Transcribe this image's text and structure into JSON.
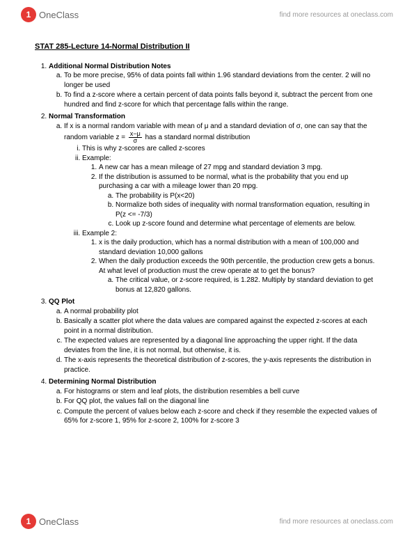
{
  "brand": {
    "logo_letter": "1",
    "logo_name": "OneClass",
    "header_link": "find more resources at oneclass.com",
    "footer_link": "find more resources at oneclass.com"
  },
  "doc": {
    "title": "STAT 285-Lecture 14-Normal Distribution II",
    "s1": {
      "title": "Additional Normal Distribution Notes",
      "a": "To be more precise, 95% of data points fall within 1.96 standard deviations from the center. 2 will no longer be used",
      "b": "To find a z-score where a certain percent of data points falls beyond it, subtract the percent from one hundred and find z-score for which that percentage falls within the range."
    },
    "s2": {
      "title": "Normal Transformation",
      "a_pre": "If x is a normal random variable with mean of μ and a standard deviation of σ, one can say that the random variable z = ",
      "a_num": "x−μ",
      "a_den": "σ",
      "a_post": " has a standard normal distribution",
      "i": "This is why z-scores are called z-scores",
      "ii": "Example:",
      "ii1": "A new car has a mean mileage of 27 mpg and standard deviation 3 mpg.",
      "ii2": "If the distribution is assumed to be normal, what is the probability that you end up purchasing a car with a mileage lower than 20 mpg.",
      "ii2a": "The probability is P(x<20)",
      "ii2b": "Normalize both sides of inequality with normal transformation equation, resulting in P(z <= -7/3)",
      "ii2c": "Look up z-score found and determine what percentage of elements are below.",
      "iii": "Example 2:",
      "iii1": "x is the daily production, which has a normal distribution with a mean of 100,000 and standard deviation 10,000 gallons",
      "iii2": "When the daily production exceeds the 90th percentile, the production crew gets a bonus. At what level of production must the crew operate at to get the bonus?",
      "iii2a": "The critical value, or z-score required, is 1.282. Multiply by standard deviation to get bonus at 12,820 gallons."
    },
    "s3": {
      "title": "QQ Plot",
      "a": "A normal probability plot",
      "b": "Basically a scatter plot where the data values are compared against the expected z-scores at each point in a normal distribution.",
      "c": "The expected values are represented by a diagonal line approaching the upper right. If the data deviates from the line, it is not normal, but otherwise, it is.",
      "d": "The x-axis represents the theoretical distribution of z-scores, the y-axis represents the distribution in practice."
    },
    "s4": {
      "title": "Determining Normal Distribution",
      "a": "For histograms or stem and leaf plots, the distribution resembles a bell curve",
      "b": "For QQ plot, the values fall on the diagonal line",
      "c": "Compute the percent of values below each z-score and check if they resemble the expected values of 65% for z-score 1, 95% for z-score 2, 100% for z-score 3"
    }
  }
}
